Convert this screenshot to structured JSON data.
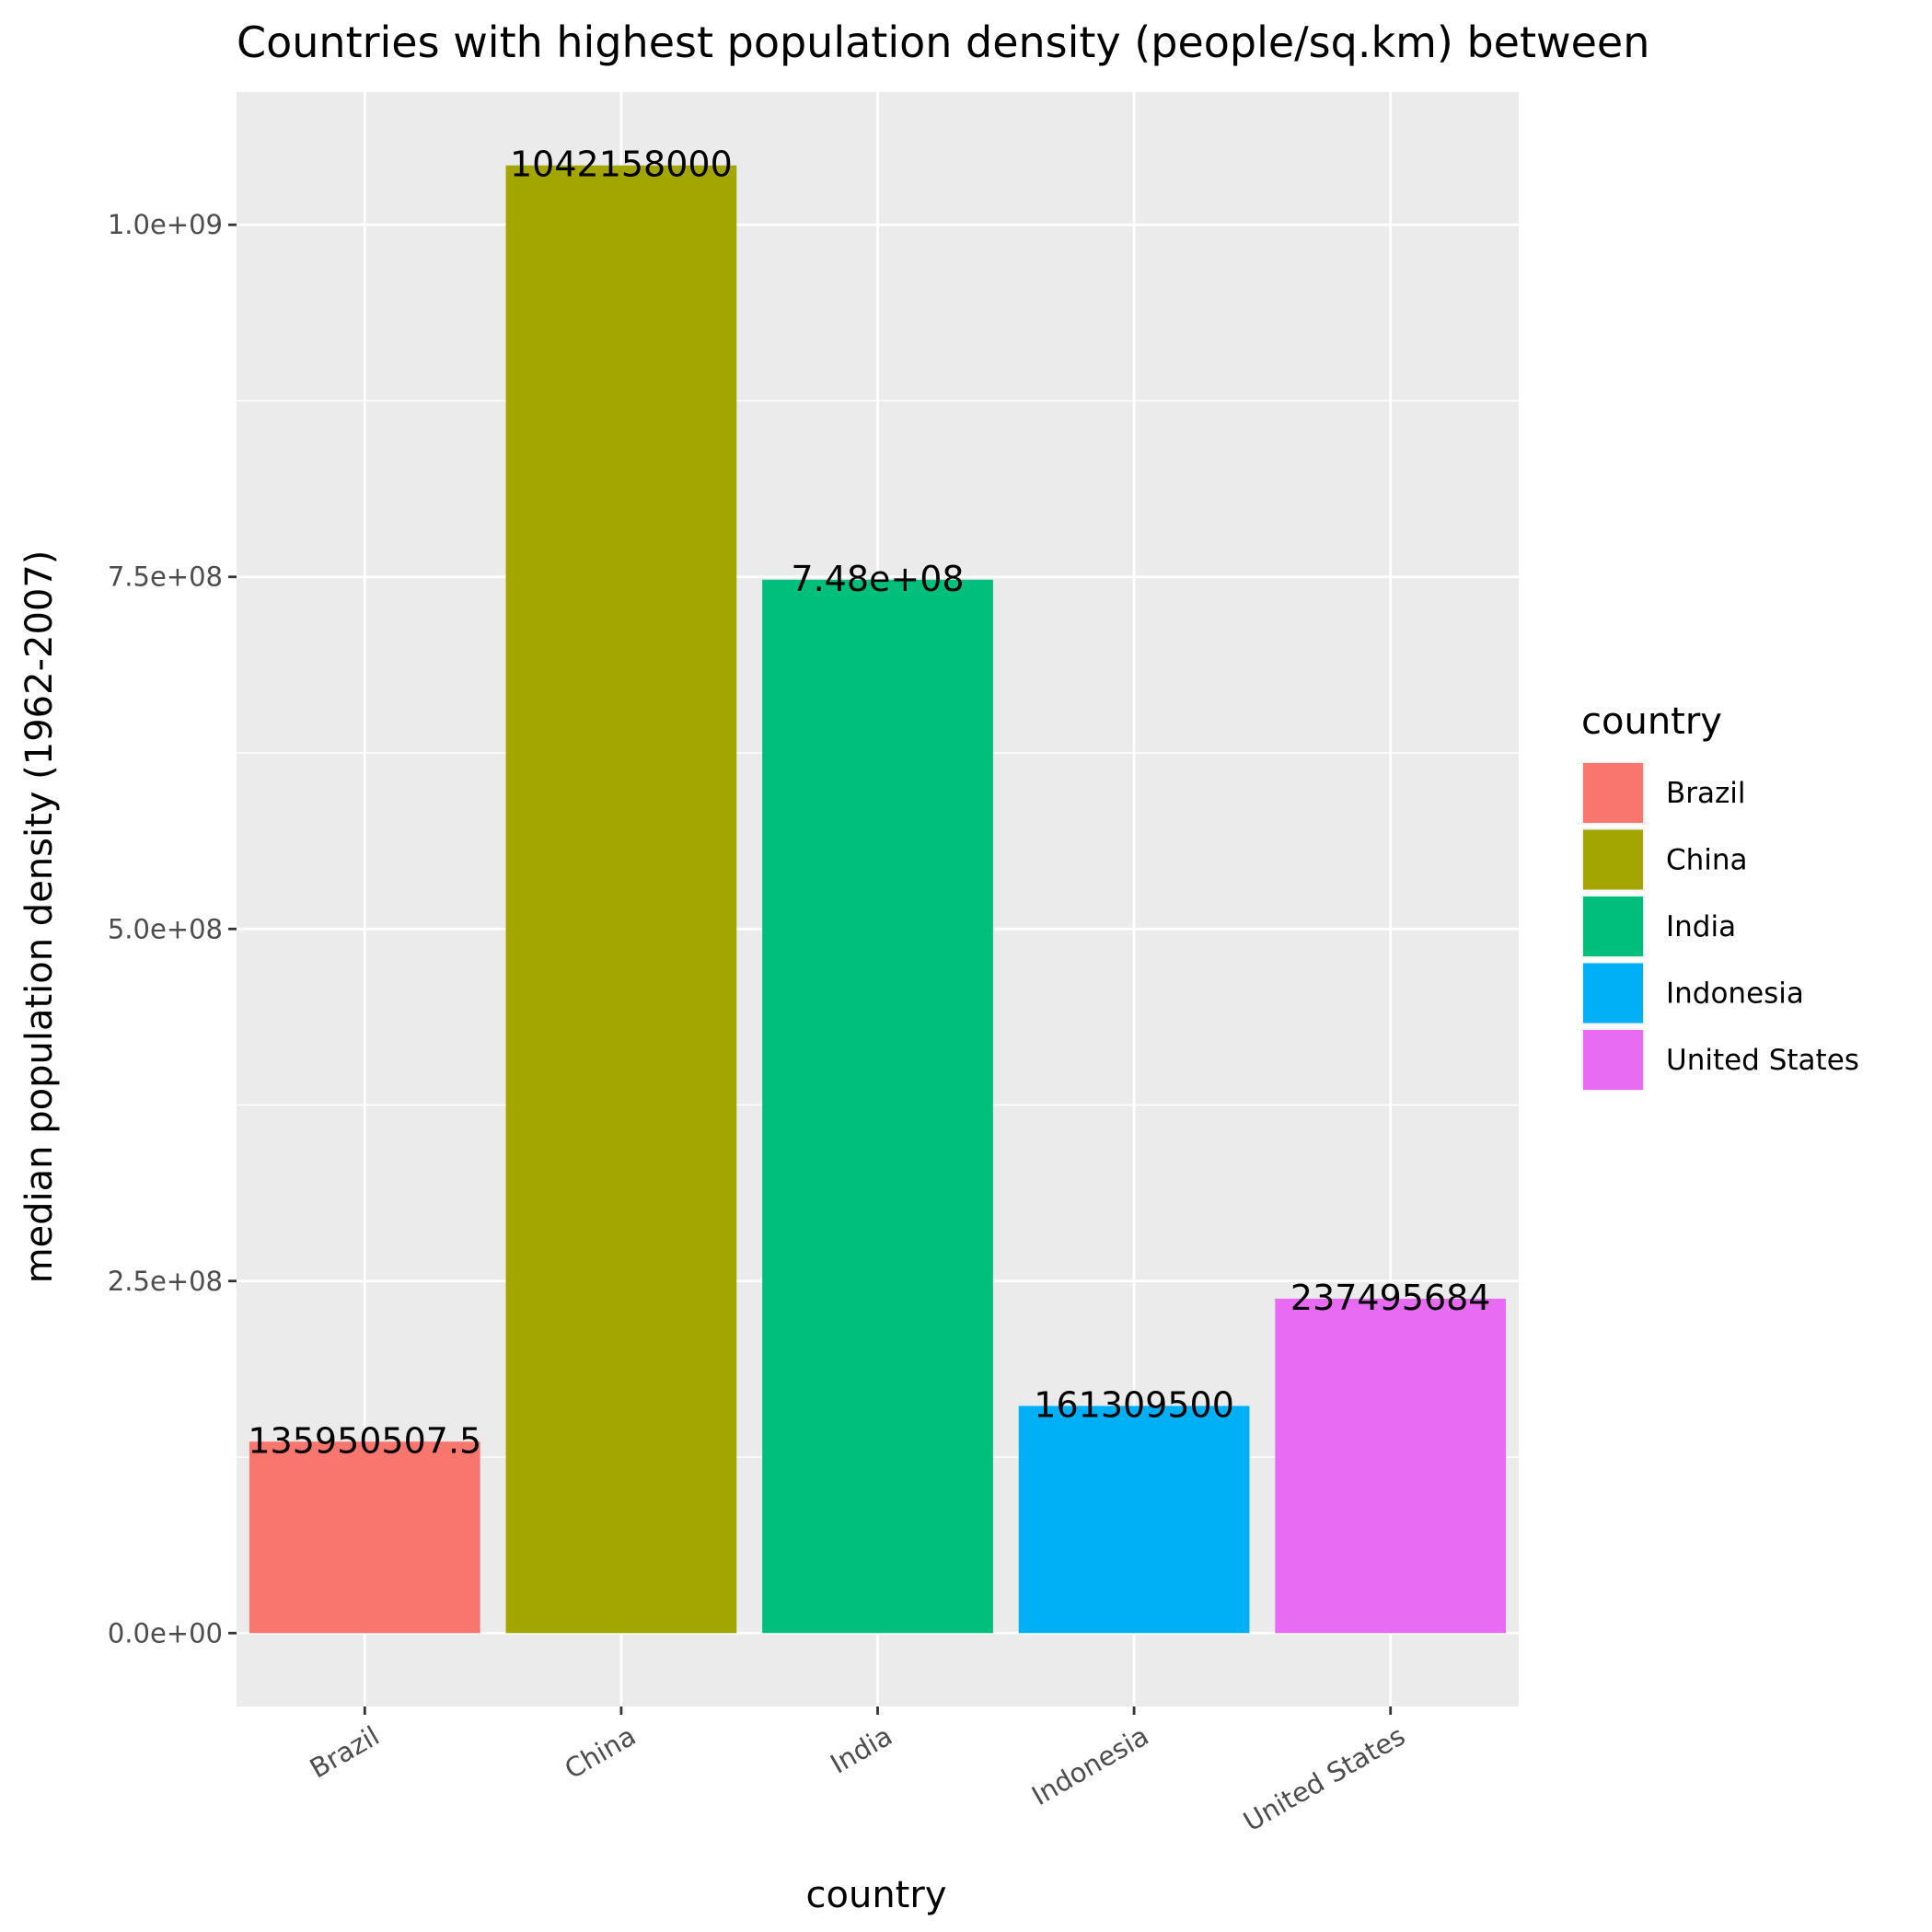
{
  "chart_data": {
    "type": "bar",
    "title": "Countries with highest population density (people/sq.km) between",
    "xlabel": "country",
    "ylabel": "median population density (1962-2007)",
    "categories": [
      "Brazil",
      "China",
      "India",
      "Indonesia",
      "United States"
    ],
    "values": [
      135950507.5,
      1042158000,
      748000000,
      161309500,
      237495684
    ],
    "value_labels": [
      "135950507.5",
      "1042158000",
      "7.48e+08",
      "161309500",
      "237495684"
    ],
    "colors": [
      "#F8766D",
      "#A3A500",
      "#00BF7D",
      "#00B0F6",
      "#E76BF3"
    ],
    "yticks": [
      0,
      250000000,
      500000000,
      750000000,
      1000000000
    ],
    "ytick_labels": [
      "0.0e+00",
      "2.5e+08",
      "5.0e+08",
      "7.5e+08",
      "1.0e+09"
    ],
    "ylim": [
      -52107900,
      1094265900
    ],
    "grid": true,
    "panel_background": "#EBEBEB",
    "legend": {
      "title": "country",
      "position": "right",
      "entries": [
        "Brazil",
        "China",
        "India",
        "Indonesia",
        "United States"
      ]
    }
  }
}
